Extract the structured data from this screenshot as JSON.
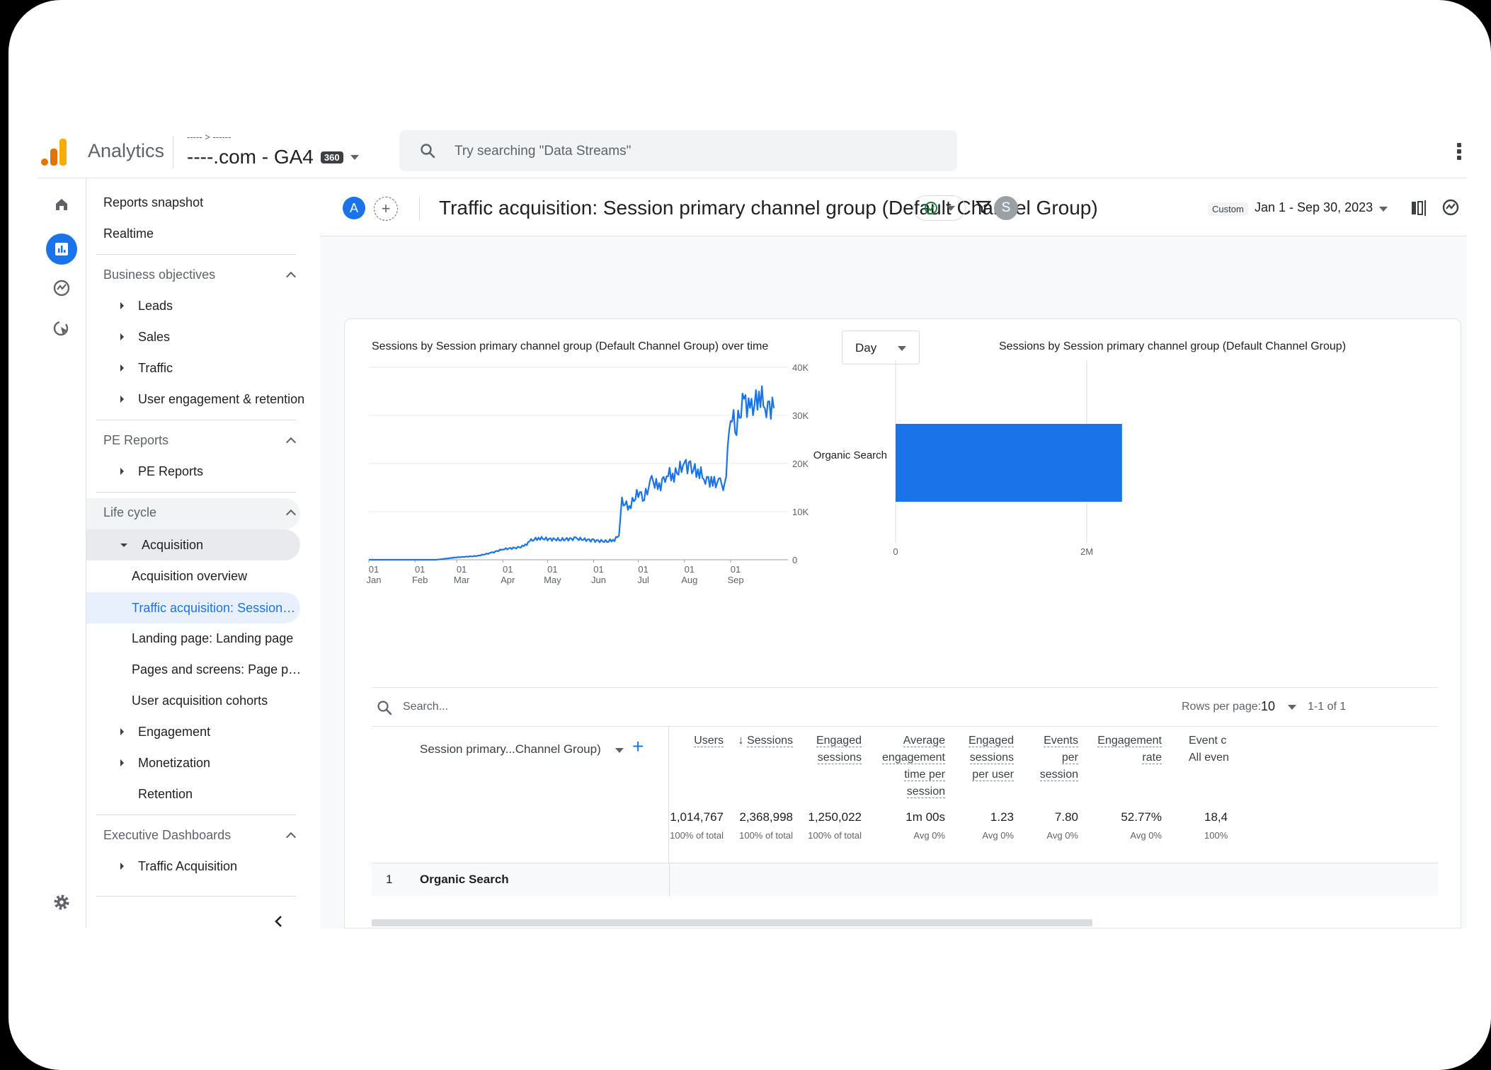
{
  "app": {
    "name": "Analytics"
  },
  "property": {
    "breadcrumb": "----- > ------",
    "name": "----.com - GA4",
    "badge": "360"
  },
  "search": {
    "placeholder": "Try searching \"Data Streams\""
  },
  "nav": {
    "reports_snapshot": "Reports snapshot",
    "realtime": "Realtime",
    "business_objectives": "Business objectives",
    "leads": "Leads",
    "sales": "Sales",
    "traffic": "Traffic",
    "user_engagement": "User engagement & retention",
    "pe_reports_cat": "PE Reports",
    "pe_reports": "PE Reports",
    "life_cycle": "Life cycle",
    "acquisition": "Acquisition",
    "acquisition_overview": "Acquisition overview",
    "traffic_acquisition": "Traffic acquisition: Session…",
    "landing_page": "Landing page: Landing page",
    "pages_screens": "Pages and screens: Page p…",
    "user_acq_cohorts": "User acquisition cohorts",
    "engagement": "Engagement",
    "monetization": "Monetization",
    "retention": "Retention",
    "exec_dashboards": "Executive Dashboards",
    "traffic_acquisition_exec": "Traffic Acquisition"
  },
  "header": {
    "avatar_a": "A",
    "title": "Traffic acquisition: Session primary channel group (Default Channel Group)",
    "avatar_s": "S",
    "custom_label": "Custom",
    "date_range": "Jan 1 - Sep 30, 2023"
  },
  "line_chart": {
    "title": "Sessions by Session primary channel group (Default Channel Group) over time",
    "granularity": "Day"
  },
  "bar_chart": {
    "title": "Sessions by Session primary channel group (Default Channel Group)"
  },
  "chart_data": [
    {
      "type": "line",
      "title": "Sessions by Session primary channel group (Default Channel Group) over time",
      "x_ticks": [
        "01 Jan",
        "01 Feb",
        "01 Mar",
        "01 Apr",
        "01 May",
        "01 Jun",
        "01 Jul",
        "01 Aug",
        "01 Sep"
      ],
      "y_ticks": [
        "0",
        "10K",
        "20K",
        "30K",
        "40K"
      ],
      "ylim": [
        0,
        40000
      ],
      "xlim": [
        "2023-01-01",
        "2023-09-30"
      ],
      "grid": true,
      "color": "#1a73e8",
      "series": [
        {
          "x": [
            "2023-01-01",
            "2023-01-15",
            "2023-02-01",
            "2023-02-15",
            "2023-03-01",
            "2023-03-15",
            "2023-03-25",
            "2023-04-01",
            "2023-04-10",
            "2023-04-15",
            "2023-04-20",
            "2023-04-25",
            "2023-05-01",
            "2023-05-10",
            "2023-05-20",
            "2023-06-01",
            "2023-06-10",
            "2023-06-15",
            "2023-06-18",
            "2023-06-20",
            "2023-06-25",
            "2023-07-01",
            "2023-07-05",
            "2023-07-10",
            "2023-07-15",
            "2023-07-20",
            "2023-07-25",
            "2023-08-01",
            "2023-08-05",
            "2023-08-10",
            "2023-08-15",
            "2023-08-20",
            "2023-08-25",
            "2023-08-28",
            "2023-09-01",
            "2023-09-05",
            "2023-09-10",
            "2023-09-15",
            "2023-09-20",
            "2023-09-25",
            "2023-09-30"
          ],
          "y": [
            0,
            0,
            0,
            0,
            500,
            800,
            1500,
            2200,
            2500,
            2800,
            4000,
            4500,
            4300,
            4200,
            4400,
            4000,
            3800,
            4200,
            5000,
            12000,
            11000,
            14000,
            13000,
            16500,
            15000,
            18000,
            17500,
            20000,
            19000,
            18500,
            17000,
            16000,
            16000,
            15000,
            30000,
            28000,
            33000,
            31000,
            34500,
            32000,
            31500
          ]
        }
      ]
    },
    {
      "type": "bar",
      "orientation": "horizontal",
      "title": "Sessions by Session primary channel group (Default Channel Group)",
      "categories": [
        "Organic Search"
      ],
      "values": [
        2368998
      ],
      "x_ticks": [
        "0",
        "2M"
      ],
      "xlim": [
        0,
        2800000
      ],
      "color": "#1a73e8"
    }
  ],
  "table": {
    "search_placeholder": "Search...",
    "rows_per_page_label": "Rows per page:",
    "rows_per_page": "10",
    "page_info": "1-1 of 1",
    "dimension_header": "Session primary...Channel Group)",
    "columns": [
      {
        "lines": [
          "Users"
        ],
        "total": "1,014,767",
        "sub": "100% of total",
        "value": "1,014,767"
      },
      {
        "lines": [
          "Sessions"
        ],
        "total": "2,368,998",
        "sub": "100% of total",
        "value": "2,368,998",
        "sorted": "desc"
      },
      {
        "lines": [
          "Engaged",
          "sessions"
        ],
        "total": "1,250,022",
        "sub": "100% of total",
        "value": "1,250,022"
      },
      {
        "lines": [
          "Average",
          "engagement",
          "time per",
          "session"
        ],
        "total": "1m 00s",
        "sub": "Avg 0%",
        "value": "1m 00s"
      },
      {
        "lines": [
          "Engaged",
          "sessions",
          "per user"
        ],
        "total": "1.23",
        "sub": "Avg 0%",
        "value": "1.23"
      },
      {
        "lines": [
          "Events",
          "per",
          "session"
        ],
        "total": "7.80",
        "sub": "Avg 0%",
        "value": "7.80"
      },
      {
        "lines": [
          "Engagement",
          "rate"
        ],
        "total": "52.77%",
        "sub": "Avg 0%",
        "value": "52.77%"
      },
      {
        "lines": [
          "Event c",
          "All even"
        ],
        "total": "18,4",
        "sub": "100%",
        "value": "18,4"
      }
    ],
    "row": {
      "index": "1",
      "name": "Organic Search"
    }
  }
}
